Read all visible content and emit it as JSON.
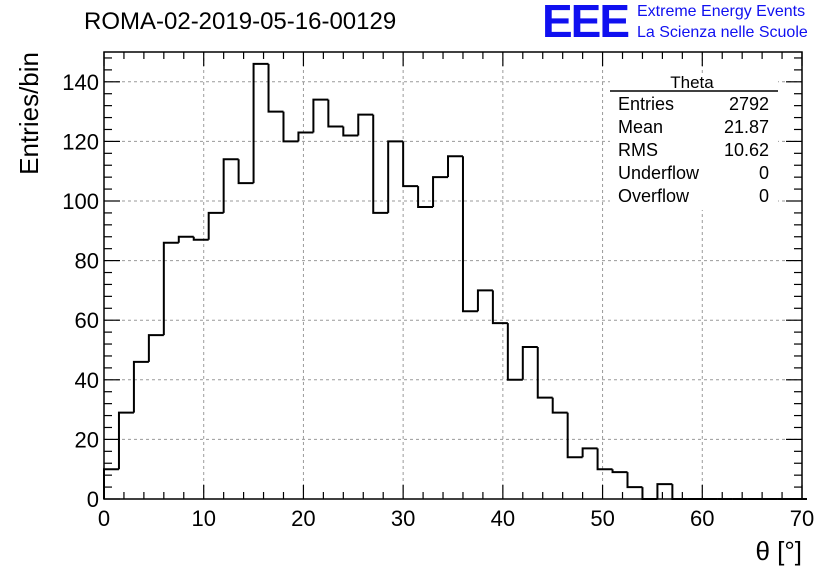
{
  "header": {
    "run_title": "ROMA-02-2019-05-16-00129",
    "logo_text": "EEE",
    "logo_line1": "Extreme Energy Events",
    "logo_line2": "La Scienza nelle Scuole",
    "logo_color": "#1010f0"
  },
  "stats_box": {
    "title": "Theta",
    "rows": [
      {
        "label": "Entries",
        "value": "2792"
      },
      {
        "label": "Mean",
        "value": "21.87"
      },
      {
        "label": "RMS",
        "value": "10.62"
      },
      {
        "label": "Underflow",
        "value": "0"
      },
      {
        "label": "Overflow",
        "value": "0"
      }
    ]
  },
  "chart_data": {
    "type": "bar",
    "histogram": "step",
    "xlabel": "θ [°]",
    "ylabel": "Entries/bin",
    "xlim": [
      0,
      70
    ],
    "ylim": [
      0,
      150
    ],
    "x_ticks": [
      0,
      10,
      20,
      30,
      40,
      50,
      60,
      70
    ],
    "y_ticks": [
      0,
      20,
      40,
      60,
      80,
      100,
      120,
      140
    ],
    "grid": true,
    "bin_width": 1.5,
    "bin_edges_start": 0,
    "values": [
      10,
      29,
      46,
      55,
      86,
      88,
      87,
      96,
      114,
      106,
      146,
      130,
      120,
      123,
      134,
      125,
      122,
      129,
      96,
      120,
      105,
      98,
      108,
      115,
      63,
      70,
      59,
      40,
      51,
      34,
      29,
      14,
      17,
      10,
      9,
      4,
      0,
      5,
      0,
      0,
      0,
      0,
      0,
      0,
      0,
      0,
      0
    ]
  }
}
